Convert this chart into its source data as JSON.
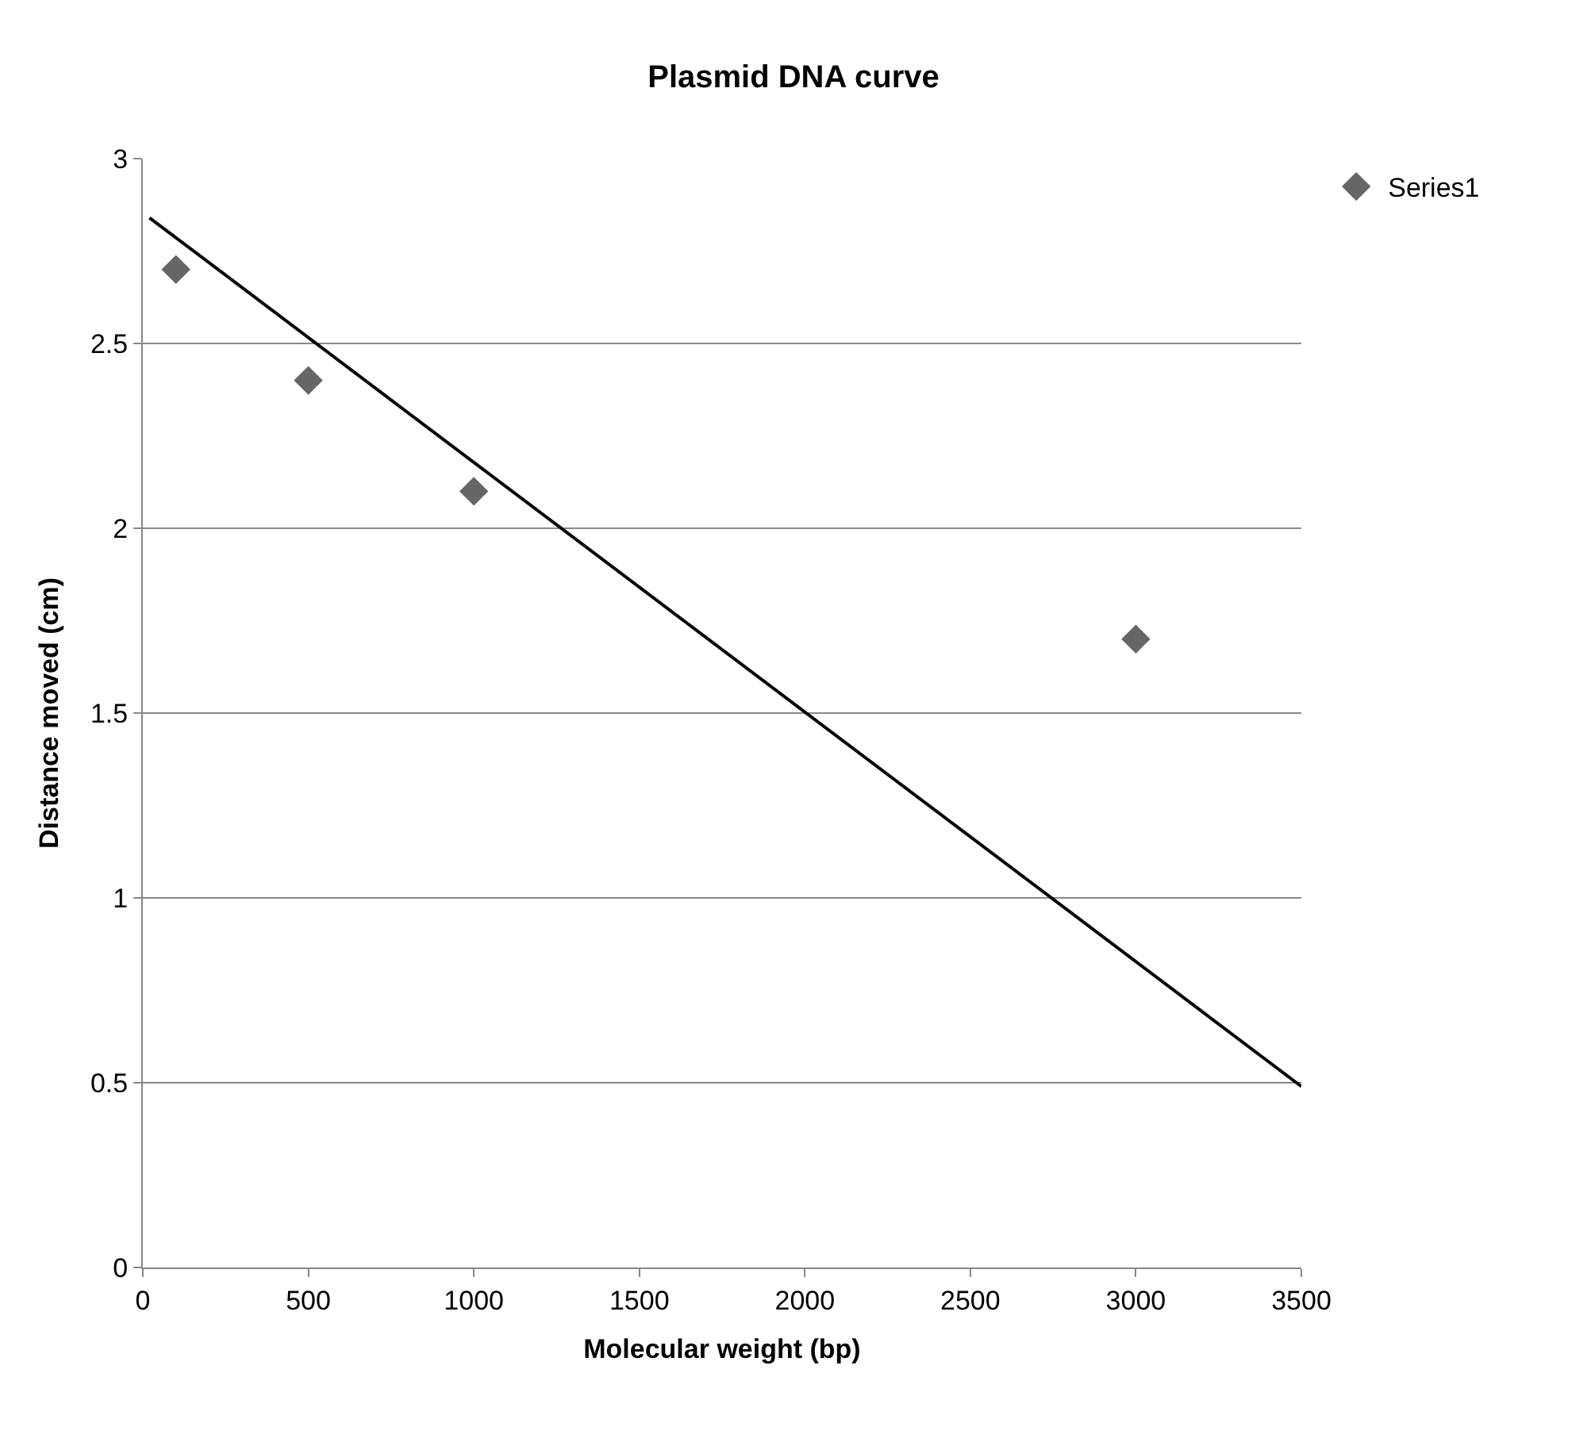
{
  "chart_data": {
    "type": "scatter",
    "title": "Plasmid DNA curve",
    "xlabel": "Molecular weight (bp)",
    "ylabel": "Distance moved (cm)",
    "series": [
      {
        "name": "Series1",
        "color": "#666666",
        "x": [
          100,
          500,
          1000,
          3000
        ],
        "values": [
          2.7,
          2.4,
          2.1,
          1.7
        ],
        "marker": "diamond"
      },
      {
        "type": "line",
        "color": "#000000",
        "x": [
          20,
          3500
        ],
        "values": [
          2.84,
          0.49
        ],
        "marker": "none",
        "line_style": "solid"
      }
    ],
    "xlim": [
      0,
      3500
    ],
    "xticks": [
      0,
      500,
      1000,
      1500,
      2000,
      2500,
      3000,
      3500
    ],
    "ylim": [
      0,
      3
    ],
    "yticks": [
      0,
      0.5,
      1,
      1.5,
      2,
      2.5,
      3
    ],
    "grid": "y",
    "legend": "top right"
  }
}
